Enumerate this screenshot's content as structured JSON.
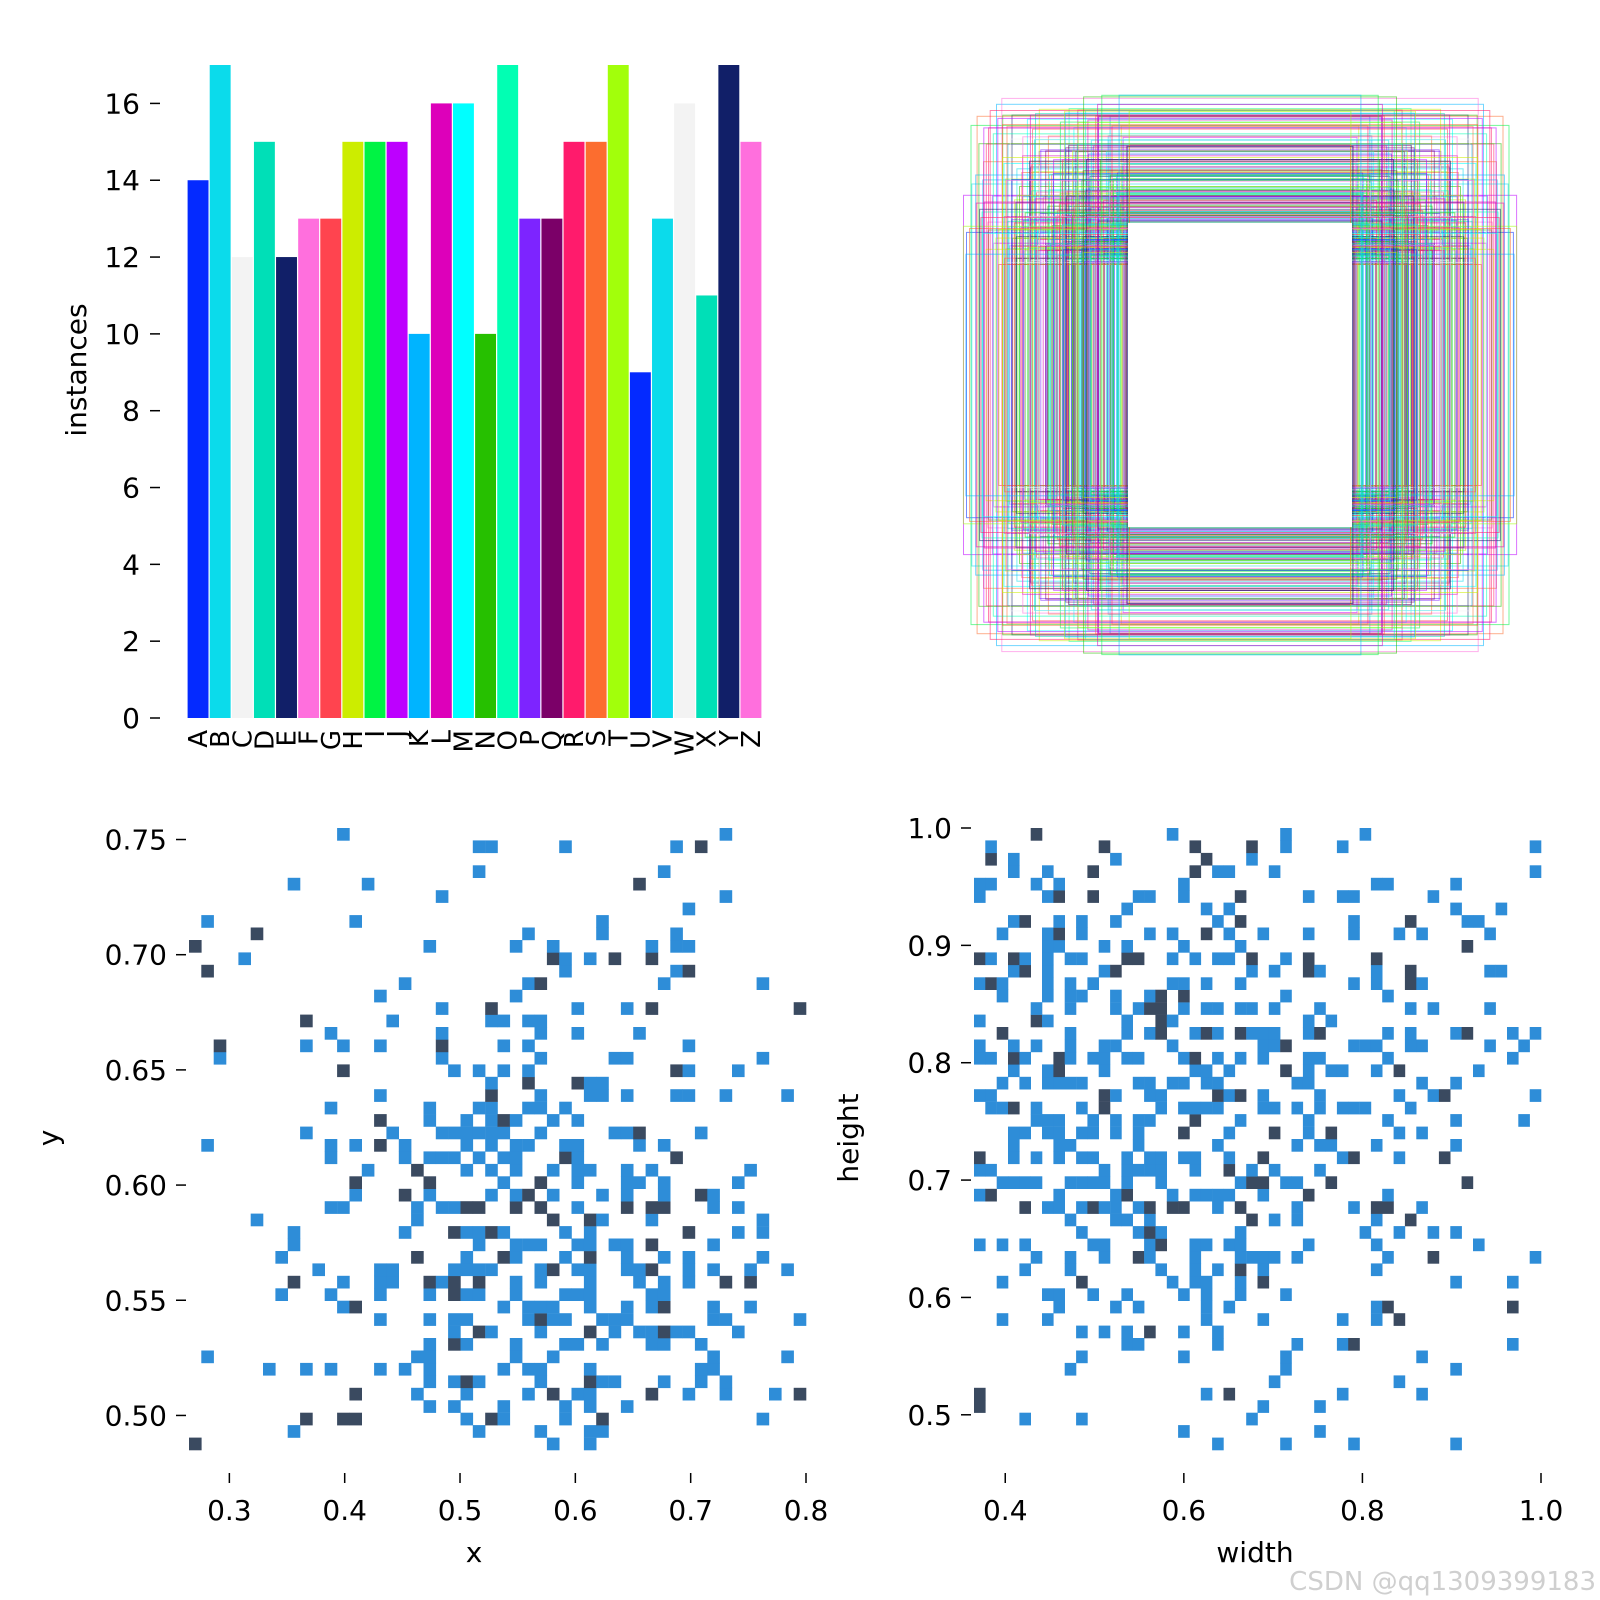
{
  "watermark": "CSDN @qq1309399183",
  "chart_data": [
    {
      "type": "bar",
      "ylabel": "instances",
      "xlabel": "",
      "ylim": [
        0,
        17
      ],
      "yticks": [
        "0",
        "2",
        "4",
        "6",
        "8",
        "10",
        "12",
        "14",
        "16"
      ],
      "categories": [
        "A",
        "B",
        "C",
        "D",
        "E",
        "F",
        "G",
        "H",
        "I",
        "J",
        "K",
        "L",
        "M",
        "N",
        "O",
        "P",
        "Q",
        "R",
        "S",
        "T",
        "U",
        "V",
        "W",
        "X",
        "Y",
        "Z"
      ],
      "values": [
        14,
        17,
        12,
        15,
        12,
        13,
        13,
        15,
        15,
        15,
        10,
        16,
        16,
        10,
        17,
        13,
        13,
        15,
        15,
        17,
        9,
        13,
        16,
        11,
        17,
        15
      ],
      "colors": [
        "#042AFF",
        "#0BDBEB",
        "#F3F3F3",
        "#00DFB7",
        "#111F68",
        "#FF6FDD",
        "#FF444F",
        "#CCED00",
        "#00F344",
        "#BD00FF",
        "#00B4FF",
        "#DD00BA",
        "#00FFFF",
        "#26C000",
        "#01FFB3",
        "#7D24FF",
        "#7B0068",
        "#FF1B6C",
        "#FC6D2F",
        "#A2FF0B",
        "#042AFF",
        "#0BDBEB",
        "#F3F3F3",
        "#00DFB7",
        "#111F68",
        "#FF6FDD"
      ]
    },
    {
      "type": "box-overlay",
      "boxes_per_class": 15,
      "palette": [
        "#042AFF",
        "#0BDBEB",
        "#F3F3F3",
        "#00DFB7",
        "#111F68",
        "#FF6FDD",
        "#FF444F",
        "#CCED00",
        "#00F344",
        "#BD00FF",
        "#00B4FF",
        "#DD00BA",
        "#00FFFF",
        "#26C000",
        "#01FFB3",
        "#7D24FF",
        "#7B0068",
        "#FF1B6C",
        "#FC6D2F",
        "#A2FF0B"
      ]
    },
    {
      "type": "heatmap",
      "xlabel": "x",
      "ylabel": "y",
      "xlim": [
        0.265,
        0.8
      ],
      "ylim": [
        0.485,
        0.755
      ],
      "xticks": [
        "0.3",
        "0.4",
        "0.5",
        "0.6",
        "0.7",
        "0.8"
      ],
      "yticks": [
        "0.50",
        "0.55",
        "0.60",
        "0.65",
        "0.70",
        "0.75"
      ],
      "bins": 50,
      "light_color": "#2E8DD8",
      "dark_color": "#3A4A60",
      "seed": 7
    },
    {
      "type": "heatmap",
      "xlabel": "width",
      "ylabel": "height",
      "xlim": [
        0.365,
        1.0
      ],
      "ylim": [
        0.47,
        1.0
      ],
      "xticks": [
        "0.4",
        "0.6",
        "0.8",
        "1.0"
      ],
      "yticks": [
        "0.5",
        "0.6",
        "0.7",
        "0.8",
        "0.9",
        "1.0"
      ],
      "bins": 50,
      "light_color": "#2E8DD8",
      "dark_color": "#3A4A60",
      "seed": 13
    }
  ]
}
